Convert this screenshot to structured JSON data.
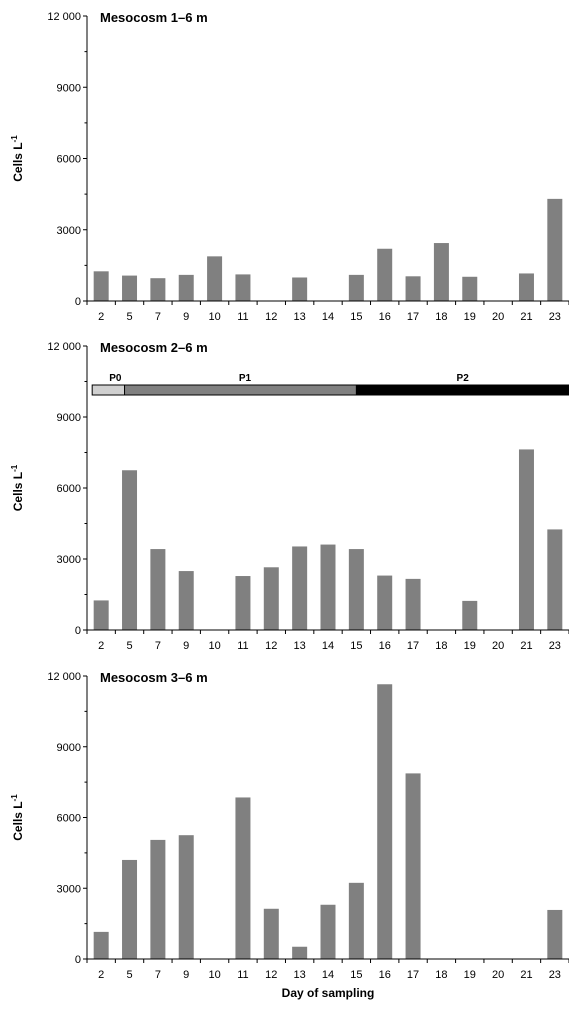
{
  "chart_data": {
    "type": "bar",
    "xlabel": "Day of sampling",
    "ylabel_main": "Cells L",
    "ylabel_sup": "-1",
    "bar_color": "#808080",
    "categories": [
      "2",
      "5",
      "7",
      "9",
      "10",
      "11",
      "12",
      "13",
      "14",
      "15",
      "16",
      "17",
      "18",
      "19",
      "20",
      "21",
      "23"
    ],
    "yticks": [
      "0",
      "3000",
      "6000",
      "9000",
      "12 000"
    ],
    "ylim": [
      0,
      12000
    ],
    "grid": false,
    "panels": [
      {
        "title": "Mesocosm 1–6 m",
        "values": [
          1250,
          1070,
          960,
          1100,
          1880,
          1120,
          0,
          990,
          0,
          1100,
          2200,
          1040,
          2440,
          1020,
          0,
          1160,
          4300
        ]
      },
      {
        "title": "Mesocosm 2–6 m",
        "values": [
          1250,
          6750,
          3420,
          2490,
          0,
          2280,
          2650,
          3530,
          3610,
          3420,
          2300,
          2160,
          0,
          1230,
          0,
          7630,
          4250
        ],
        "phases": [
          {
            "label": "P0",
            "start": "2",
            "end": "5",
            "color": "#d0d0d0"
          },
          {
            "label": "P1",
            "start": "5",
            "end": "15",
            "color": "#808080"
          },
          {
            "label": "P2",
            "start": "15",
            "end": "23",
            "color": "#000000"
          }
        ]
      },
      {
        "title": "Mesocosm 3–6 m",
        "values": [
          1150,
          4200,
          5050,
          5250,
          0,
          6850,
          2130,
          520,
          2300,
          3230,
          11650,
          7870,
          0,
          0,
          0,
          0,
          2080
        ]
      }
    ]
  }
}
